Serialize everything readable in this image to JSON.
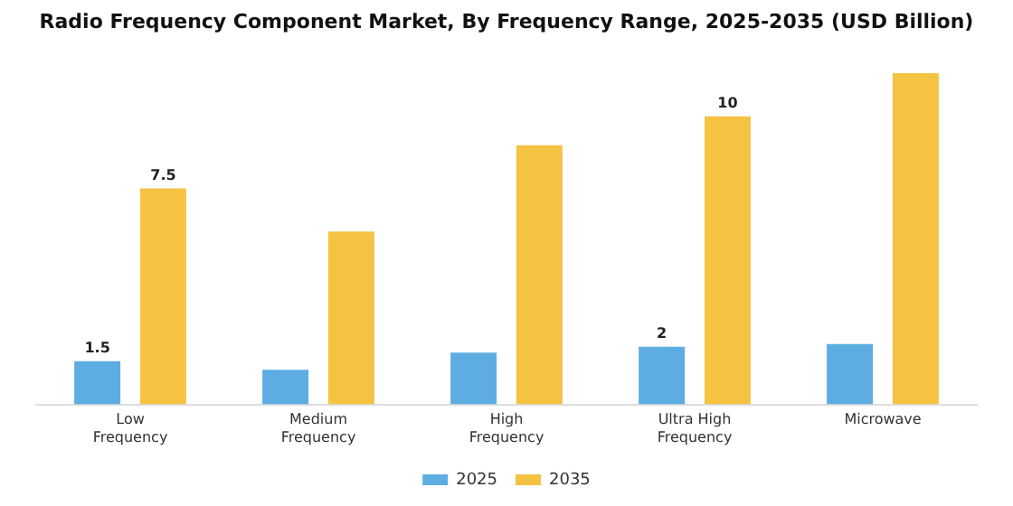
{
  "chart_data": {
    "type": "bar",
    "title": "Radio Frequency Component Market, By Frequency Range, 2025-2035 (USD Billion)",
    "categories": [
      "Low Frequency",
      "Medium Frequency",
      "High Frequency",
      "Ultra High Frequency",
      "Microwave"
    ],
    "series": [
      {
        "name": "2025",
        "color": "#5dade2",
        "values": [
          1.5,
          1.2,
          1.8,
          2.0,
          2.1
        ],
        "value_labels": [
          "1.5",
          null,
          null,
          "2",
          null
        ]
      },
      {
        "name": "2035",
        "color": "#f5c242",
        "values": [
          7.5,
          6.0,
          9.0,
          10.0,
          11.5
        ],
        "value_labels": [
          "7.5",
          null,
          null,
          "10",
          null
        ]
      }
    ],
    "legend": "bottom",
    "grid": false
  }
}
